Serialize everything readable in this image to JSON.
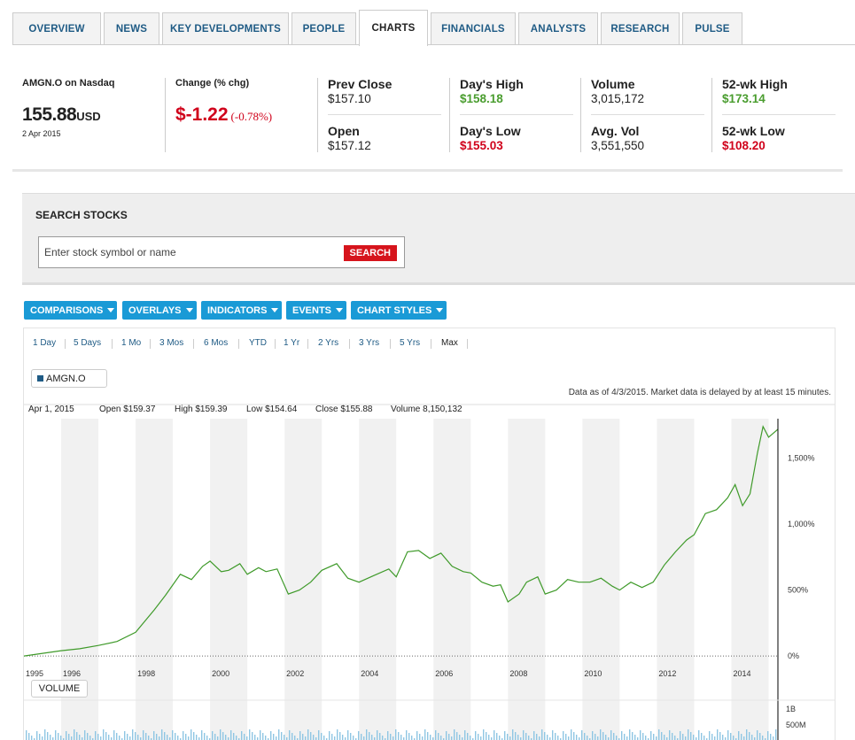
{
  "tabs": [
    {
      "label": "OVERVIEW"
    },
    {
      "label": "NEWS"
    },
    {
      "label": "KEY DEVELOPMENTS"
    },
    {
      "label": "PEOPLE"
    },
    {
      "label": "CHARTS",
      "active": true
    },
    {
      "label": "FINANCIALS"
    },
    {
      "label": "ANALYSTS"
    },
    {
      "label": "RESEARCH"
    },
    {
      "label": "PULSE"
    }
  ],
  "quote": {
    "symbol_line": "AMGN.O on Nasdaq",
    "price": "155.88",
    "currency": "USD",
    "date": "2 Apr 2015",
    "change_label": "Change (% chg)",
    "change": "$-1.22",
    "change_pct": "(-0.78%)",
    "stats": {
      "prev_close": {
        "label": "Prev Close",
        "value": "$157.10"
      },
      "open": {
        "label": "Open",
        "value": "$157.12"
      },
      "days_high": {
        "label": "Day's High",
        "value": "$158.18"
      },
      "days_low": {
        "label": "Day's Low",
        "value": "$155.03"
      },
      "volume": {
        "label": "Volume",
        "value": "3,015,172"
      },
      "avg_vol": {
        "label": "Avg. Vol",
        "value": "3,551,550"
      },
      "wk52_high": {
        "label": "52-wk High",
        "value": "$173.14"
      },
      "wk52_low": {
        "label": "52-wk Low",
        "value": "$108.20"
      }
    }
  },
  "search": {
    "title": "SEARCH STOCKS",
    "placeholder": "Enter stock symbol or name",
    "button": "SEARCH"
  },
  "toolbar": [
    "COMPARISONS",
    "OVERLAYS",
    "INDICATORS",
    "EVENTS",
    "CHART STYLES"
  ],
  "ranges": [
    {
      "label": "1 Day"
    },
    {
      "label": "5 Days"
    },
    {
      "label": "1 Mo"
    },
    {
      "label": "3 Mos"
    },
    {
      "label": "6 Mos"
    },
    {
      "label": "YTD"
    },
    {
      "label": "1 Yr"
    },
    {
      "label": "2 Yrs"
    },
    {
      "label": "3 Yrs"
    },
    {
      "label": "5 Yrs"
    },
    {
      "label": "Max",
      "selected": true
    }
  ],
  "legend_symbol": "AMGN.O",
  "as_of": "Data as of 4/3/2015. Market data is delayed by at least 15 minutes.",
  "ohlc": {
    "date": "Apr 1, 2015",
    "open": "Open $159.37",
    "high": "High $159.39",
    "low": "Low $154.64",
    "close": "Close $155.88",
    "volume": "Volume 8,150,132"
  },
  "volume_label": "VOLUME",
  "colors": {
    "line": "#3f9a2a",
    "accent": "#1a9ad6",
    "negative": "#d0021b",
    "positive": "#4a9d2f"
  },
  "chart_data": {
    "type": "line",
    "series": [
      {
        "name": "AMGN.O",
        "x": [
          1995.0,
          1995.5,
          1996.0,
          1996.5,
          1997.0,
          1997.5,
          1998.0,
          1998.5,
          1998.8,
          1999.2,
          1999.5,
          1999.8,
          2000.0,
          2000.3,
          2000.5,
          2000.8,
          2001.0,
          2001.3,
          2001.5,
          2001.8,
          2002.1,
          2002.4,
          2002.7,
          2003.0,
          2003.4,
          2003.7,
          2004.0,
          2004.4,
          2004.8,
          2005.0,
          2005.3,
          2005.6,
          2005.9,
          2006.2,
          2006.5,
          2006.8,
          2007.0,
          2007.3,
          2007.6,
          2007.8,
          2008.0,
          2008.3,
          2008.5,
          2008.8,
          2009.0,
          2009.3,
          2009.6,
          2009.9,
          2010.2,
          2010.5,
          2010.8,
          2011.0,
          2011.3,
          2011.6,
          2011.9,
          2012.2,
          2012.5,
          2012.8,
          2013.0,
          2013.3,
          2013.6,
          2013.9,
          2014.1,
          2014.3,
          2014.5,
          2014.7,
          2014.85,
          2015.0,
          2015.25
        ],
        "values": [
          0,
          20,
          40,
          55,
          80,
          110,
          180,
          350,
          460,
          620,
          580,
          680,
          720,
          640,
          650,
          700,
          620,
          670,
          640,
          660,
          470,
          500,
          560,
          650,
          700,
          590,
          560,
          610,
          660,
          600,
          790,
          800,
          740,
          780,
          680,
          640,
          630,
          560,
          530,
          540,
          410,
          470,
          560,
          600,
          470,
          500,
          580,
          560,
          560,
          590,
          530,
          500,
          560,
          520,
          560,
          690,
          790,
          880,
          920,
          1080,
          1110,
          1200,
          1300,
          1140,
          1230,
          1540,
          1740,
          1660,
          1720
        ]
      }
    ],
    "x_ticks": [
      "1995",
      "1996",
      "1998",
      "2000",
      "2002",
      "2004",
      "2006",
      "2008",
      "2010",
      "2012",
      "2014"
    ],
    "y_ticks": [
      "0%",
      "500%",
      "1,000%",
      "1,500%"
    ],
    "xlim": [
      1995.0,
      2015.25
    ],
    "ylim": [
      -100,
      1800
    ],
    "volume_ticks": [
      "1B",
      "500M"
    ],
    "grid": "alternating vertical year bands",
    "legend": "top-left"
  }
}
